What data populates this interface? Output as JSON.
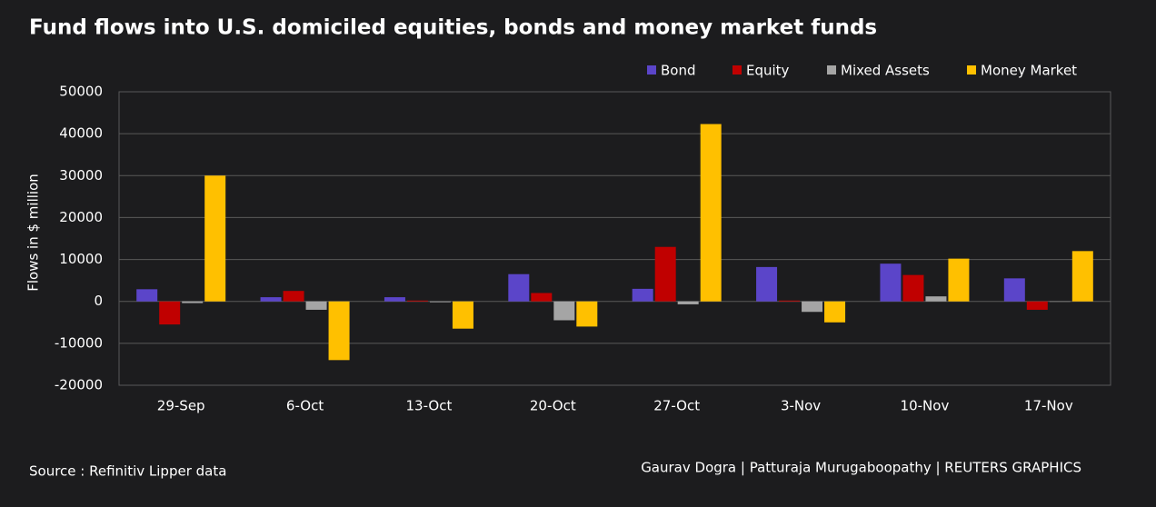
{
  "chart_data": {
    "type": "bar",
    "title": "Fund flows into U.S. domiciled equities, bonds and money market funds",
    "y_label": "Flows in $ million",
    "source": "Source : Refinitiv Lipper data",
    "credit": "Gaurav Dogra | Patturaja Murugaboopathy | REUTERS GRAPHICS",
    "categories": [
      "29-Sep",
      "6-Oct",
      "13-Oct",
      "20-Oct",
      "27-Oct",
      "3-Nov",
      "10-Nov",
      "17-Nov"
    ],
    "series": [
      {
        "name": "Bond",
        "color": "#5b45c9",
        "values": [
          2900,
          1000,
          1000,
          6500,
          3000,
          8200,
          9000,
          5500
        ]
      },
      {
        "name": "Equity",
        "color": "#c00000",
        "values": [
          -5500,
          2500,
          200,
          2000,
          13000,
          200,
          6300,
          -2000
        ]
      },
      {
        "name": "Mixed Assets",
        "color": "#a5a5a5",
        "values": [
          -400,
          -2000,
          -200,
          -4500,
          -700,
          -2500,
          1200,
          -100
        ]
      },
      {
        "name": "Money Market",
        "color": "#ffc000",
        "values": [
          30000,
          -14000,
          -6500,
          -6000,
          42300,
          -5000,
          10200,
          12000
        ]
      }
    ],
    "ylim": [
      -20000,
      50000
    ],
    "yticks": [
      -20000,
      -10000,
      0,
      10000,
      20000,
      30000,
      40000,
      50000
    ],
    "grid": true,
    "legend": "top-right"
  }
}
